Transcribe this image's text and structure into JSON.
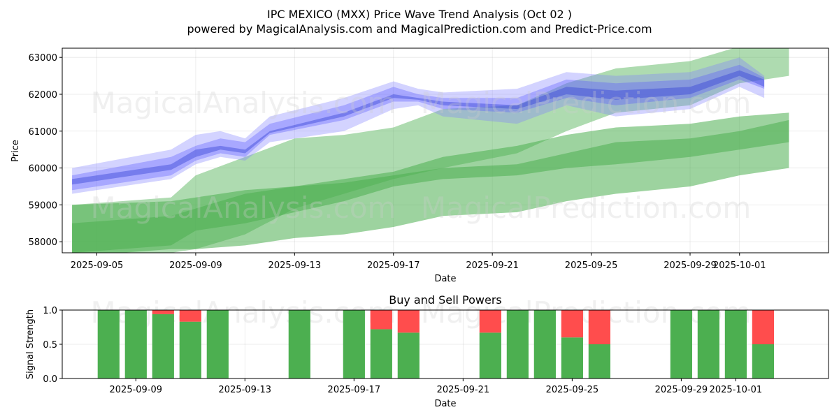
{
  "chart_data": [
    {
      "type": "area",
      "title": "IPC MEXICO (MXX) Price Wave Trend Analysis (Oct 02 )",
      "subtitle": "powered by MagicalAnalysis.com and MagicalPrediction.com and Predict-Price.com",
      "xlabel": "Date",
      "ylabel": "Price",
      "ylim": [
        57700,
        63250
      ],
      "xlim": [
        "2025-09-03.6",
        "2025-10-04.6"
      ],
      "x_ticks": [
        "2025-09-05",
        "2025-09-09",
        "2025-09-13",
        "2025-09-17",
        "2025-09-21",
        "2025-09-25",
        "2025-09-29",
        "2025-10-01"
      ],
      "y_ticks": [
        58000,
        59000,
        60000,
        61000,
        62000,
        63000
      ],
      "watermarks": [
        "MagicalAnalysis.com",
        "MagicalPrediction.com"
      ],
      "grid": true,
      "blue_bands": [
        {
          "x": [
            "2025-09-04",
            "2025-09-08",
            "2025-09-09",
            "2025-09-10",
            "2025-09-11",
            "2025-09-12",
            "2025-09-15",
            "2025-09-17",
            "2025-09-18",
            "2025-09-19",
            "2025-09-22",
            "2025-09-24",
            "2025-09-26",
            "2025-09-29",
            "2025-10-01",
            "2025-10-02"
          ],
          "upper": [
            60000,
            60500,
            60900,
            61000,
            60800,
            61400,
            61900,
            62350,
            62150,
            62050,
            62150,
            62600,
            62500,
            62600,
            63000,
            62500
          ],
          "lower": [
            59300,
            59700,
            60100,
            60300,
            60200,
            60700,
            61000,
            61600,
            61700,
            61400,
            61200,
            61700,
            61400,
            61600,
            62200,
            61900
          ]
        },
        {
          "x": [
            "2025-09-04",
            "2025-09-08",
            "2025-09-09",
            "2025-09-10",
            "2025-09-11",
            "2025-09-12",
            "2025-09-15",
            "2025-09-17",
            "2025-09-18",
            "2025-09-19",
            "2025-09-22",
            "2025-09-24",
            "2025-09-26",
            "2025-09-29",
            "2025-10-01",
            "2025-10-02"
          ],
          "upper": [
            59800,
            60300,
            60600,
            60800,
            60700,
            61200,
            61700,
            62200,
            62000,
            61900,
            61900,
            62400,
            62300,
            62400,
            62800,
            62450
          ],
          "lower": [
            59400,
            59800,
            60200,
            60400,
            60300,
            60900,
            61300,
            61800,
            61800,
            61600,
            61500,
            61900,
            61700,
            61900,
            62400,
            62150
          ]
        },
        {
          "x": [
            "2025-09-04",
            "2025-09-08",
            "2025-09-09",
            "2025-09-10",
            "2025-09-11",
            "2025-09-12",
            "2025-09-15",
            "2025-09-17",
            "2025-09-18",
            "2025-09-19",
            "2025-09-22",
            "2025-09-24",
            "2025-09-26",
            "2025-09-29",
            "2025-10-01",
            "2025-10-02"
          ],
          "upper": [
            59700,
            60100,
            60500,
            60600,
            60500,
            61000,
            61500,
            62000,
            61900,
            61800,
            61700,
            62200,
            62100,
            62200,
            62650,
            62400
          ],
          "lower": [
            59550,
            59950,
            60300,
            60500,
            60400,
            60950,
            61400,
            61900,
            61850,
            61700,
            61600,
            62000,
            61850,
            62000,
            62500,
            62200
          ]
        }
      ],
      "green_bands": [
        {
          "x": [
            "2025-09-04",
            "2025-09-08",
            "2025-09-09",
            "2025-09-11",
            "2025-09-13",
            "2025-09-15",
            "2025-09-17",
            "2025-09-19",
            "2025-09-22",
            "2025-09-24",
            "2025-09-26",
            "2025-09-29",
            "2025-10-01",
            "2025-10-03"
          ],
          "upper": [
            59000,
            59200,
            59800,
            60300,
            60800,
            60900,
            61100,
            61600,
            61700,
            62300,
            62700,
            62900,
            63300,
            63400
          ],
          "lower": [
            57700,
            57700,
            57800,
            58200,
            58900,
            59300,
            59700,
            60000,
            60400,
            61000,
            61500,
            61700,
            62300,
            62500
          ]
        },
        {
          "x": [
            "2025-09-04",
            "2025-09-08",
            "2025-09-09",
            "2025-09-11",
            "2025-09-13",
            "2025-09-15",
            "2025-09-17",
            "2025-09-19",
            "2025-09-22",
            "2025-09-24",
            "2025-09-26",
            "2025-09-29",
            "2025-10-01",
            "2025-10-03"
          ],
          "upper": [
            59000,
            59100,
            59200,
            59400,
            59500,
            59700,
            59900,
            60300,
            60600,
            60900,
            61100,
            61200,
            61400,
            61500
          ],
          "lower": [
            57600,
            57800,
            57800,
            57900,
            58100,
            58200,
            58400,
            58700,
            58800,
            59100,
            59300,
            59500,
            59800,
            60000
          ]
        },
        {
          "x": [
            "2025-09-04",
            "2025-09-08",
            "2025-09-09",
            "2025-09-11",
            "2025-09-13",
            "2025-09-15",
            "2025-09-17",
            "2025-09-19",
            "2025-09-22",
            "2025-09-24",
            "2025-09-26",
            "2025-09-29",
            "2025-10-01",
            "2025-10-03"
          ],
          "upper": [
            58500,
            58700,
            58900,
            59300,
            59500,
            59600,
            59800,
            60000,
            60100,
            60400,
            60700,
            60800,
            61000,
            61300
          ],
          "lower": [
            57700,
            57900,
            58300,
            58500,
            58800,
            59100,
            59500,
            59700,
            59800,
            60000,
            60100,
            60300,
            60500,
            60700
          ]
        }
      ]
    },
    {
      "type": "bar",
      "title": "Buy and Sell Powers",
      "xlabel": "Date",
      "ylabel": "Signal Strength",
      "ylim": [
        0,
        1.0
      ],
      "xlim": [
        "2025-09-06.3",
        "2025-10-04.4"
      ],
      "x_ticks": [
        "2025-09-09",
        "2025-09-13",
        "2025-09-17",
        "2025-09-21",
        "2025-09-25",
        "2025-09-29",
        "2025-10-01"
      ],
      "y_ticks": [
        "0.0",
        "0.5",
        "1.0"
      ],
      "series": [
        {
          "name": "Buy",
          "color": "#4caf50"
        },
        {
          "name": "Sell",
          "color": "#ff4d4d"
        }
      ],
      "bars": [
        {
          "date": "2025-09-08",
          "buy": 1.0,
          "sell": 0.0
        },
        {
          "date": "2025-09-09",
          "buy": 1.0,
          "sell": 0.0
        },
        {
          "date": "2025-09-10",
          "buy": 0.94,
          "sell": 0.06
        },
        {
          "date": "2025-09-11",
          "buy": 0.83,
          "sell": 0.17
        },
        {
          "date": "2025-09-12",
          "buy": 1.0,
          "sell": 0.0
        },
        {
          "date": "2025-09-15",
          "buy": 1.0,
          "sell": 0.0
        },
        {
          "date": "2025-09-17",
          "buy": 1.0,
          "sell": 0.0
        },
        {
          "date": "2025-09-18",
          "buy": 0.72,
          "sell": 0.28
        },
        {
          "date": "2025-09-19",
          "buy": 0.67,
          "sell": 0.33
        },
        {
          "date": "2025-09-22",
          "buy": 0.67,
          "sell": 0.33
        },
        {
          "date": "2025-09-23",
          "buy": 1.0,
          "sell": 0.0
        },
        {
          "date": "2025-09-24",
          "buy": 1.0,
          "sell": 0.0
        },
        {
          "date": "2025-09-25",
          "buy": 0.6,
          "sell": 0.4
        },
        {
          "date": "2025-09-26",
          "buy": 0.5,
          "sell": 0.5
        },
        {
          "date": "2025-09-29",
          "buy": 1.0,
          "sell": 0.0
        },
        {
          "date": "2025-09-30",
          "buy": 1.0,
          "sell": 0.0
        },
        {
          "date": "2025-10-01",
          "buy": 1.0,
          "sell": 0.0
        },
        {
          "date": "2025-10-02",
          "buy": 0.5,
          "sell": 0.5
        }
      ]
    }
  ]
}
